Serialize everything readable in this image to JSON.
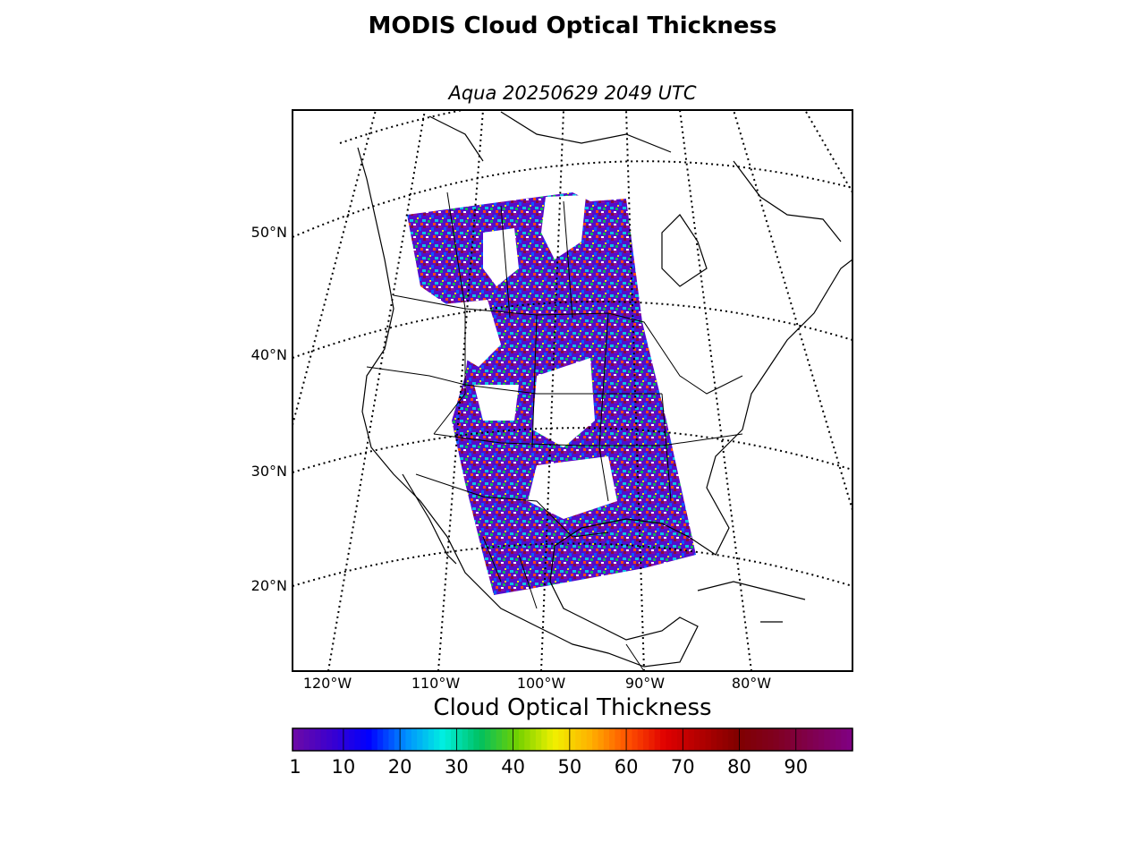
{
  "title": "MODIS Cloud Optical Thickness",
  "subtitle": "Aqua 20250629 2049 UTC",
  "map": {
    "projection": "lambert-conformal",
    "latitude_labels": [
      "50°N",
      "40°N",
      "30°N",
      "20°N"
    ],
    "longitude_labels": [
      "120°W",
      "110°W",
      "100°W",
      "90°W",
      "80°W"
    ],
    "graticule_style": "dotted"
  },
  "colorbar": {
    "label": "Cloud Optical Thickness",
    "ticks": [
      "1",
      "10",
      "20",
      "30",
      "40",
      "50",
      "60",
      "70",
      "80",
      "90"
    ],
    "range": [
      1,
      100
    ],
    "colors": [
      "#6a0aa8",
      "#3a00d0",
      "#0000ff",
      "#0090ff",
      "#00f0e0",
      "#00c060",
      "#70d000",
      "#f0f000",
      "#ffb000",
      "#ff5000",
      "#e00000",
      "#b00000",
      "#800000",
      "#800020",
      "#800050",
      "#800080"
    ]
  }
}
